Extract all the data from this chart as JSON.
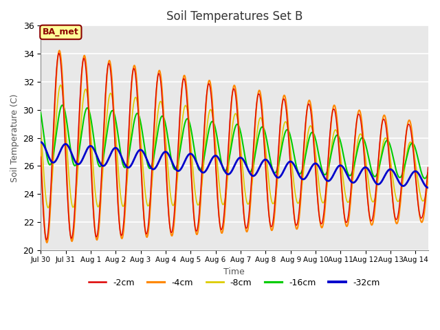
{
  "title": "Soil Temperatures Set B",
  "xlabel": "Time",
  "ylabel": "Soil Temperature (C)",
  "ylim": [
    20,
    36
  ],
  "background_color": "#e8e8e8",
  "fig_background": "#ffffff",
  "grid_color": "#ffffff",
  "annotation_text": "BA_met",
  "annotation_bg": "#ffff99",
  "annotation_border": "#8b0000",
  "annotation_text_color": "#8b0000",
  "xtick_labels": [
    "Jul 30",
    "Jul 31",
    "Aug 1",
    "Aug 2",
    "Aug 3",
    "Aug 4",
    "Aug 5",
    "Aug 6",
    "Aug 7",
    "Aug 8",
    "Aug 9",
    "Aug 10",
    "Aug 11",
    "Aug 12",
    "Aug 13",
    "Aug 14"
  ],
  "series": {
    "-2cm": {
      "color": "#dd0000",
      "linewidth": 1.0
    },
    "-4cm": {
      "color": "#ff8800",
      "linewidth": 1.5
    },
    "-8cm": {
      "color": "#ddcc00",
      "linewidth": 1.2
    },
    "-16cm": {
      "color": "#00cc00",
      "linewidth": 1.5
    },
    "-32cm": {
      "color": "#0000cc",
      "linewidth": 2.0
    }
  },
  "legend_colors": {
    "-2cm": "#dd0000",
    "-4cm": "#ff8800",
    "-8cm": "#ddcc00",
    "-16cm": "#00cc00",
    "-32cm": "#0000cc"
  }
}
